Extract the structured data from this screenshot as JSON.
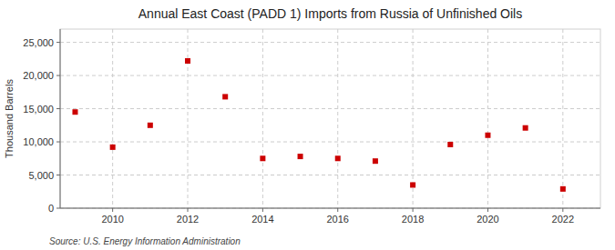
{
  "chart_data": {
    "type": "scatter",
    "title": "Annual East Coast (PADD 1) Imports from Russia of Unfinished Oils",
    "y_label": "Thousand Barrels",
    "annotations": [
      "Source: U.S. Energy Information Administration"
    ],
    "x": [
      2009,
      2010,
      2011,
      2012,
      2013,
      2014,
      2015,
      2016,
      2017,
      2018,
      2019,
      2020,
      2021,
      2022
    ],
    "values": [
      14500,
      9200,
      12500,
      22200,
      16800,
      7500,
      7800,
      7500,
      7100,
      3500,
      9600,
      11000,
      12100,
      2900
    ],
    "color": "#cc0000",
    "marker": "square",
    "xlim": [
      2008.6,
      2023.0
    ],
    "xticks": [
      2010,
      2012,
      2014,
      2016,
      2018,
      2020,
      2022
    ],
    "ylim": [
      0,
      27000
    ],
    "yticks": [
      0,
      {
        "value": 5000,
        "label": "5,000"
      },
      {
        "value": 10000,
        "label": "10,000"
      },
      {
        "value": 15000,
        "label": "15,000"
      },
      {
        "value": 20000,
        "label": "20,000"
      },
      {
        "value": 25000,
        "label": "25,000"
      }
    ],
    "grid": true
  }
}
